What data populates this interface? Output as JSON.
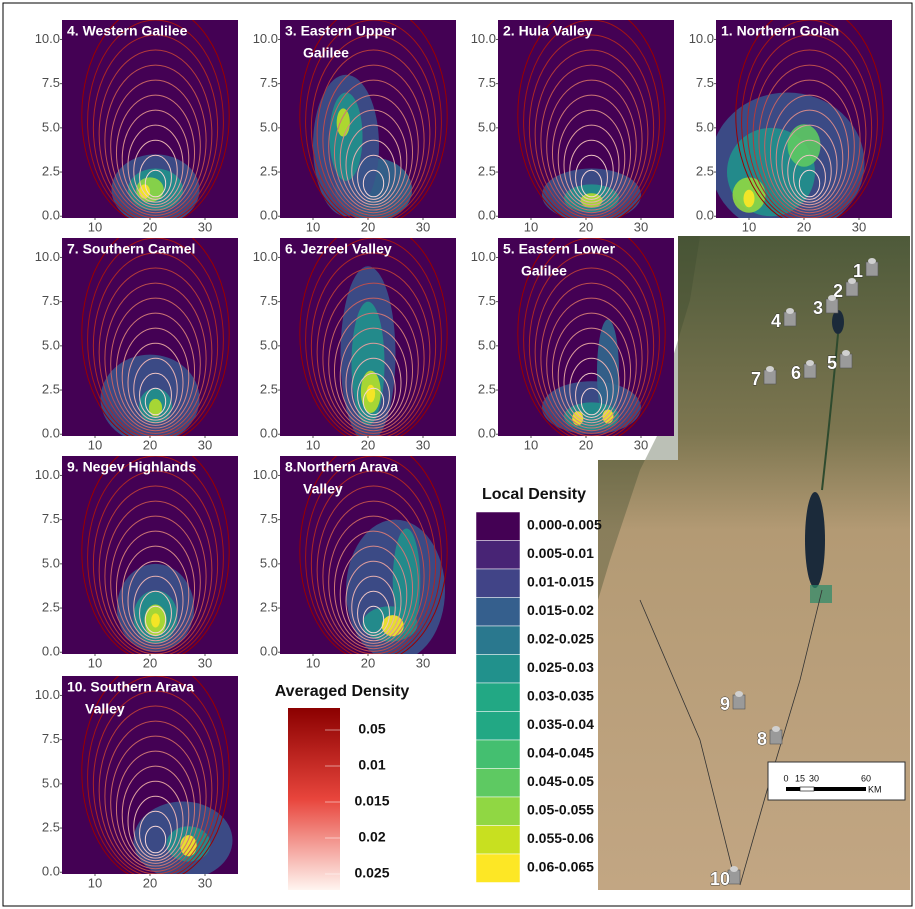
{
  "chart_data": [
    {
      "type": "density",
      "title": [
        "4. Western Galilee"
      ],
      "xlim": [
        4,
        36
      ],
      "ylim": [
        -0.1,
        11.1
      ],
      "xticks": [
        10,
        20,
        30
      ],
      "yticks": [
        {
          "value": 0,
          "label": "0.0"
        },
        {
          "value": 2.5,
          "label": "2.5"
        },
        {
          "value": 5,
          "label": "5.0"
        },
        {
          "value": 7.5,
          "label": "7.5"
        },
        {
          "value": 10,
          "label": "10.0"
        }
      ]
    },
    {
      "type": "density",
      "title": [
        "3. Eastern Upper",
        "Galilee"
      ],
      "xlim": [
        4,
        36
      ],
      "ylim": [
        -0.1,
        11.1
      ],
      "xticks": [
        10,
        20,
        30
      ],
      "yticks": [
        {
          "value": 0,
          "label": "0.0"
        },
        {
          "value": 2.5,
          "label": "2.5"
        },
        {
          "value": 5,
          "label": "5.0"
        },
        {
          "value": 7.5,
          "label": "7.5"
        },
        {
          "value": 10,
          "label": "10.0"
        }
      ]
    },
    {
      "type": "density",
      "title": [
        "2. Hula Valley"
      ],
      "xlim": [
        4,
        36
      ],
      "ylim": [
        -0.1,
        11.1
      ],
      "xticks": [
        10,
        20,
        30
      ],
      "yticks": [
        {
          "value": 0,
          "label": "0.0"
        },
        {
          "value": 2.5,
          "label": "2.5"
        },
        {
          "value": 5,
          "label": "5.0"
        },
        {
          "value": 7.5,
          "label": "7.5"
        },
        {
          "value": 10,
          "label": "10.0"
        }
      ]
    },
    {
      "type": "density",
      "title": [
        "1. Northern Golan"
      ],
      "xlim": [
        4,
        36
      ],
      "ylim": [
        -0.1,
        11.1
      ],
      "xticks": [
        10,
        20,
        30
      ],
      "yticks": [
        {
          "value": 0,
          "label": "0.0"
        },
        {
          "value": 2.5,
          "label": "2.5"
        },
        {
          "value": 5,
          "label": "5.0"
        },
        {
          "value": 7.5,
          "label": "7.5"
        },
        {
          "value": 10,
          "label": "10.0"
        }
      ]
    },
    {
      "type": "density",
      "title": [
        "7. Southern Carmel"
      ],
      "xlim": [
        4,
        36
      ],
      "ylim": [
        -0.1,
        11.1
      ],
      "xticks": [
        10,
        20,
        30
      ],
      "yticks": [
        {
          "value": 0,
          "label": "0.0"
        },
        {
          "value": 2.5,
          "label": "2.5"
        },
        {
          "value": 5,
          "label": "5.0"
        },
        {
          "value": 7.5,
          "label": "7.5"
        },
        {
          "value": 10,
          "label": "10.0"
        }
      ]
    },
    {
      "type": "density",
      "title": [
        "6. Jezreel Valley"
      ],
      "xlim": [
        4,
        36
      ],
      "ylim": [
        -0.1,
        11.1
      ],
      "xticks": [
        10,
        20,
        30
      ],
      "yticks": [
        {
          "value": 0,
          "label": "0.0"
        },
        {
          "value": 2.5,
          "label": "2.5"
        },
        {
          "value": 5,
          "label": "5.0"
        },
        {
          "value": 7.5,
          "label": "7.5"
        },
        {
          "value": 10,
          "label": "10.0"
        }
      ]
    },
    {
      "type": "density",
      "title": [
        "5. Eastern Lower",
        "Galilee"
      ],
      "xlim": [
        4,
        36
      ],
      "ylim": [
        -0.1,
        11.1
      ],
      "xticks": [
        10,
        20,
        30
      ],
      "yticks": [
        {
          "value": 0,
          "label": "0.0"
        },
        {
          "value": 2.5,
          "label": "2.5"
        },
        {
          "value": 5,
          "label": "5.0"
        },
        {
          "value": 7.5,
          "label": "7.5"
        },
        {
          "value": 10,
          "label": "10.0"
        }
      ]
    },
    {
      "type": "density",
      "title": [
        "9. Negev Highlands"
      ],
      "xlim": [
        4,
        36
      ],
      "ylim": [
        -0.1,
        11.1
      ],
      "xticks": [
        10,
        20,
        30
      ],
      "yticks": [
        {
          "value": 0,
          "label": "0.0"
        },
        {
          "value": 2.5,
          "label": "2.5"
        },
        {
          "value": 5,
          "label": "5.0"
        },
        {
          "value": 7.5,
          "label": "7.5"
        },
        {
          "value": 10,
          "label": "10.0"
        }
      ]
    },
    {
      "type": "density",
      "title": [
        "8.Northern Arava",
        "Valley"
      ],
      "xlim": [
        4,
        36
      ],
      "ylim": [
        -0.1,
        11.1
      ],
      "xticks": [
        10,
        20,
        30
      ],
      "yticks": [
        {
          "value": 0,
          "label": "0.0"
        },
        {
          "value": 2.5,
          "label": "2.5"
        },
        {
          "value": 5,
          "label": "5.0"
        },
        {
          "value": 7.5,
          "label": "7.5"
        },
        {
          "value": 10,
          "label": "10.0"
        }
      ]
    },
    {
      "type": "density",
      "title": [
        "10. Southern Arava",
        "Valley"
      ],
      "xlim": [
        4,
        36
      ],
      "ylim": [
        -0.1,
        11.1
      ],
      "xticks": [
        10,
        20,
        30
      ],
      "yticks": [
        {
          "value": 0,
          "label": "0.0"
        },
        {
          "value": 2.5,
          "label": "2.5"
        },
        {
          "value": 5,
          "label": "5.0"
        },
        {
          "value": 7.5,
          "label": "7.5"
        },
        {
          "value": 10,
          "label": "10.0"
        }
      ]
    }
  ],
  "local_density": {
    "title": "Local Density",
    "labels": [
      "0.000-0.005",
      "0.005-0.01",
      "0.01-0.015",
      "0.015-0.02",
      "0.02-0.025",
      "0.025-0.03",
      "0.03-0.035",
      "0.035-0.04",
      "0.04-0.045",
      "0.045-0.05",
      "0.05-0.055",
      "0.055-0.06",
      "0.06-0.065"
    ],
    "colors": [
      "#440154",
      "#482475",
      "#414487",
      "#355f8d",
      "#2a788e",
      "#21918c",
      "#22a884",
      "#22a884",
      "#44bf70",
      "#5ec962",
      "#90d743",
      "#c8e020",
      "#fde725"
    ]
  },
  "averaged_density": {
    "title": "Averaged Density",
    "labels": [
      "0.05",
      "0.01",
      "0.015",
      "0.02",
      "0.025"
    ]
  },
  "map": {
    "sites": [
      "1",
      "2",
      "3",
      "4",
      "5",
      "6",
      "7",
      "8",
      "9",
      "10"
    ],
    "scale_ticks": [
      "0",
      "15",
      "30",
      "60"
    ],
    "scale_unit": "KM"
  }
}
